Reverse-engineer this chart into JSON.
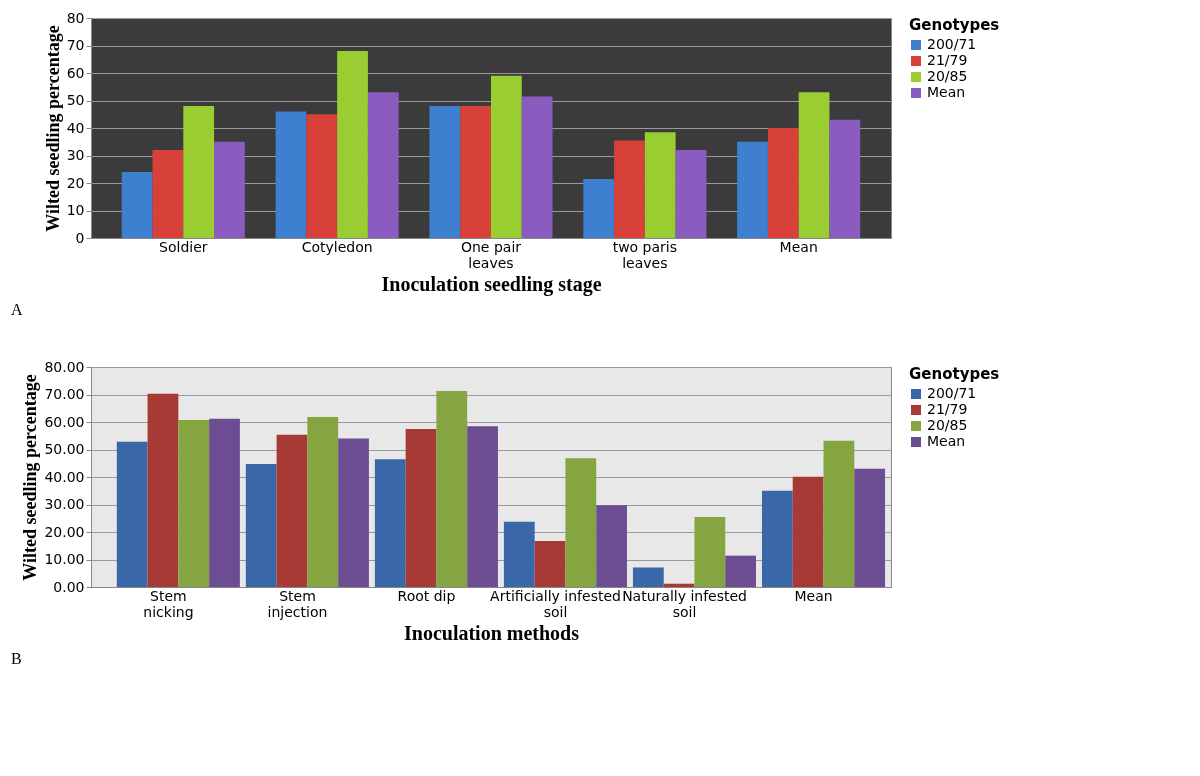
{
  "chart_data": [
    {
      "type": "bar",
      "xlabel": "Inoculation seedling stage",
      "ylabel": "Wilted seedling percentage",
      "legend_title": "Genotypes",
      "legend": "top right",
      "grid": "y",
      "categories": [
        "Soldier",
        "Cotyledon",
        "One pair leaves",
        "two paris leaves",
        "Mean"
      ],
      "series": [
        {
          "name": "200/71",
          "color": "#3f7fd0",
          "values": [
            24,
            46,
            48,
            21.5,
            35
          ]
        },
        {
          "name": "21/79",
          "color": "#d8403a",
          "values": [
            32,
            45,
            48,
            35.5,
            40
          ]
        },
        {
          "name": "20/85",
          "color": "#9acd32",
          "values": [
            48,
            68,
            59,
            38.5,
            53
          ]
        },
        {
          "name": "Mean",
          "color": "#8a5cc0",
          "values": [
            35,
            53,
            51.5,
            32,
            43
          ]
        }
      ],
      "ylim": [
        0,
        80
      ],
      "yticks": [
        0,
        10,
        20,
        30,
        40,
        50,
        60,
        70,
        80
      ],
      "annotations": [
        "A"
      ]
    },
    {
      "type": "bar",
      "xlabel": "Inoculation methods",
      "ylabel": "Wilted seedling percentage",
      "legend_title": "Genotypes",
      "legend": "top right",
      "grid": "y",
      "categories": [
        "Stem nicking",
        "Stem injection",
        "Root dip",
        "Artificially infested soil",
        "Naturally infested soil",
        "Mean"
      ],
      "series": [
        {
          "name": "200/71",
          "color": "#3a67a8",
          "values": [
            52.8,
            44.7,
            46.5,
            23.7,
            7.1,
            35
          ]
        },
        {
          "name": "21/79",
          "color": "#a83a35",
          "values": [
            70.3,
            55.4,
            57.5,
            16.7,
            1.2,
            40.1
          ]
        },
        {
          "name": "20/85",
          "color": "#84a53f",
          "values": [
            60.7,
            61.8,
            71.3,
            46.8,
            25.5,
            53.2
          ]
        },
        {
          "name": "Mean",
          "color": "#6c4d92",
          "values": [
            61.2,
            54,
            58.5,
            29.7,
            11.4,
            43
          ]
        }
      ],
      "ylim": [
        0,
        80
      ],
      "yticks": [
        {
          "value": 0,
          "label": "0.00"
        },
        {
          "value": 10,
          "label": "10.00"
        },
        {
          "value": 20,
          "label": "20.00"
        },
        {
          "value": 30,
          "label": "30.00"
        },
        {
          "value": 40,
          "label": "40.00"
        },
        {
          "value": 50,
          "label": "50.00"
        },
        {
          "value": 60,
          "label": "60.00"
        },
        {
          "value": 70,
          "label": "70.00"
        },
        {
          "value": 80,
          "label": "80.00"
        }
      ],
      "annotations": [
        "B"
      ]
    }
  ]
}
